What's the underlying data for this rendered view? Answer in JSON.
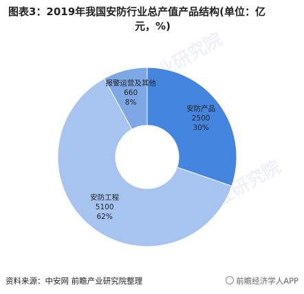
{
  "title_line1": "图表3：2019年我国安防行业总产值产品结构(单位：亿",
  "title_line2": "元，%)",
  "source": "资料来源：中安网 前瞻产业研究院整理",
  "brand": "前瞻经济学人APP",
  "watermark": "前瞻产业研究院",
  "colors": {
    "安防产品": "#4485e0",
    "报警运营及其他": "#7ea7e6",
    "安防工程": "#a7c4f1"
  },
  "chart_data": {
    "type": "pie",
    "donut": true,
    "title": "图表3：2019年我国安防行业总产值产品结构(单位：亿元，%)",
    "categories": [
      "安防产品",
      "安防工程",
      "报警运营及其他"
    ],
    "values": [
      2500,
      5100,
      660
    ],
    "percents": [
      "30%",
      "62%",
      "8%"
    ],
    "value_labels": [
      "2500",
      "5100",
      "660"
    ],
    "start_angle_deg": 0
  }
}
